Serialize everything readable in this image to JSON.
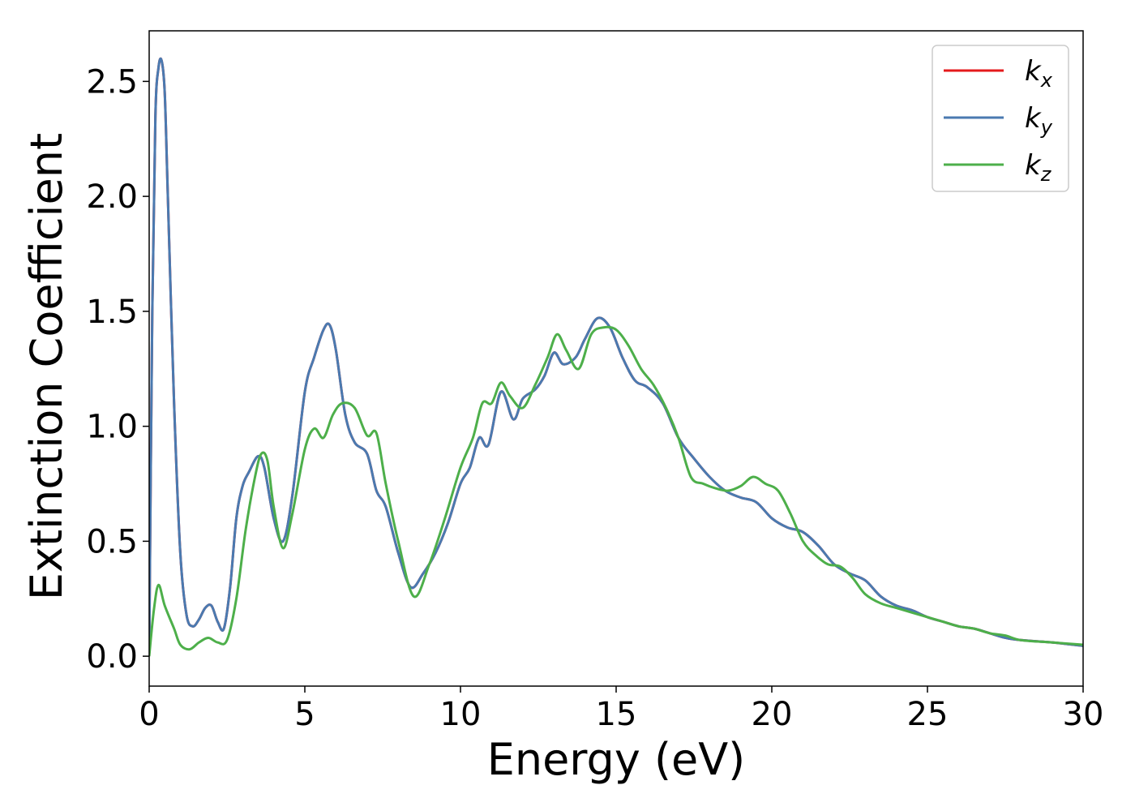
{
  "chart_data": {
    "type": "line",
    "xlabel": "Energy (eV)",
    "ylabel": "Extinction Coefficient",
    "xlim": [
      0,
      30
    ],
    "ylim": [
      -0.13,
      2.72
    ],
    "xticks": [
      0,
      5,
      10,
      15,
      20,
      25,
      30
    ],
    "xtick_labels": [
      "0",
      "5",
      "10",
      "15",
      "20",
      "25",
      "30"
    ],
    "yticks": [
      0.0,
      0.5,
      1.0,
      1.5,
      2.0,
      2.5
    ],
    "ytick_labels": [
      "0.0",
      "0.5",
      "1.0",
      "1.5",
      "2.0",
      "2.5"
    ],
    "grid": false,
    "legend_position": "top-right",
    "series": [
      {
        "name": "k_x",
        "legend_main": "k",
        "legend_sub": "x",
        "color": "#e41a1c",
        "x": [
          0,
          0.1,
          0.2,
          0.3,
          0.4,
          0.5,
          0.6,
          0.8,
          1.0,
          1.2,
          1.4,
          1.6,
          1.8,
          2.0,
          2.2,
          2.4,
          2.6,
          2.8,
          3.0,
          3.2,
          3.5,
          3.7,
          4.0,
          4.3,
          4.6,
          5.0,
          5.3,
          5.6,
          5.8,
          6.0,
          6.3,
          6.6,
          7.0,
          7.3,
          7.6,
          8.0,
          8.4,
          8.8,
          9.2,
          9.6,
          10.0,
          10.3,
          10.6,
          10.9,
          11.3,
          11.7,
          12.0,
          12.4,
          12.7,
          13.0,
          13.3,
          13.7,
          14.0,
          14.4,
          14.8,
          15.2,
          15.6,
          16.0,
          16.5,
          17.0,
          17.5,
          18.0,
          18.5,
          19.0,
          19.5,
          20.0,
          20.5,
          21.0,
          21.5,
          22.0,
          22.5,
          23.0,
          23.5,
          24.0,
          24.5,
          25.0,
          25.5,
          26.0,
          26.5,
          27.0,
          27.5,
          28.0,
          29.0,
          30.0
        ],
        "y": [
          0.0,
          1.5,
          2.35,
          2.56,
          2.59,
          2.45,
          2.0,
          1.1,
          0.45,
          0.18,
          0.13,
          0.16,
          0.21,
          0.22,
          0.15,
          0.12,
          0.3,
          0.6,
          0.74,
          0.8,
          0.87,
          0.82,
          0.6,
          0.5,
          0.7,
          1.15,
          1.3,
          1.42,
          1.44,
          1.33,
          1.05,
          0.93,
          0.88,
          0.72,
          0.65,
          0.45,
          0.3,
          0.36,
          0.45,
          0.58,
          0.75,
          0.82,
          0.95,
          0.92,
          1.15,
          1.03,
          1.12,
          1.16,
          1.22,
          1.32,
          1.27,
          1.3,
          1.38,
          1.47,
          1.43,
          1.3,
          1.2,
          1.17,
          1.1,
          0.95,
          0.86,
          0.78,
          0.72,
          0.69,
          0.67,
          0.6,
          0.56,
          0.54,
          0.48,
          0.4,
          0.36,
          0.33,
          0.26,
          0.22,
          0.2,
          0.17,
          0.15,
          0.13,
          0.12,
          0.1,
          0.08,
          0.07,
          0.06,
          0.045
        ]
      },
      {
        "name": "k_y",
        "legend_main": "k",
        "legend_sub": "y",
        "color": "#4a7ab0",
        "x": [
          0,
          0.1,
          0.2,
          0.3,
          0.4,
          0.5,
          0.6,
          0.8,
          1.0,
          1.2,
          1.4,
          1.6,
          1.8,
          2.0,
          2.2,
          2.4,
          2.6,
          2.8,
          3.0,
          3.2,
          3.5,
          3.7,
          4.0,
          4.3,
          4.6,
          5.0,
          5.3,
          5.6,
          5.8,
          6.0,
          6.3,
          6.6,
          7.0,
          7.3,
          7.6,
          8.0,
          8.4,
          8.8,
          9.2,
          9.6,
          10.0,
          10.3,
          10.6,
          10.9,
          11.3,
          11.7,
          12.0,
          12.4,
          12.7,
          13.0,
          13.3,
          13.7,
          14.0,
          14.4,
          14.8,
          15.2,
          15.6,
          16.0,
          16.5,
          17.0,
          17.5,
          18.0,
          18.5,
          19.0,
          19.5,
          20.0,
          20.5,
          21.0,
          21.5,
          22.0,
          22.5,
          23.0,
          23.5,
          24.0,
          24.5,
          25.0,
          25.5,
          26.0,
          26.5,
          27.0,
          27.5,
          28.0,
          29.0,
          30.0
        ],
        "y": [
          0.0,
          1.5,
          2.35,
          2.56,
          2.59,
          2.45,
          2.0,
          1.1,
          0.45,
          0.18,
          0.13,
          0.16,
          0.21,
          0.22,
          0.15,
          0.12,
          0.3,
          0.6,
          0.74,
          0.8,
          0.87,
          0.82,
          0.6,
          0.5,
          0.7,
          1.15,
          1.3,
          1.42,
          1.44,
          1.33,
          1.05,
          0.93,
          0.88,
          0.72,
          0.65,
          0.45,
          0.3,
          0.36,
          0.45,
          0.58,
          0.75,
          0.82,
          0.95,
          0.92,
          1.15,
          1.03,
          1.12,
          1.16,
          1.22,
          1.32,
          1.27,
          1.3,
          1.38,
          1.47,
          1.43,
          1.3,
          1.2,
          1.17,
          1.1,
          0.95,
          0.86,
          0.78,
          0.72,
          0.69,
          0.67,
          0.6,
          0.56,
          0.54,
          0.48,
          0.4,
          0.36,
          0.33,
          0.26,
          0.22,
          0.2,
          0.17,
          0.15,
          0.13,
          0.12,
          0.1,
          0.08,
          0.07,
          0.06,
          0.045
        ]
      },
      {
        "name": "k_z",
        "legend_main": "k",
        "legend_sub": "z",
        "color": "#4daf4a",
        "x": [
          0,
          0.15,
          0.3,
          0.5,
          0.8,
          1.0,
          1.3,
          1.6,
          1.9,
          2.2,
          2.5,
          2.8,
          3.1,
          3.4,
          3.6,
          3.8,
          4.0,
          4.3,
          4.6,
          5.0,
          5.3,
          5.6,
          5.9,
          6.2,
          6.6,
          7.0,
          7.3,
          7.6,
          8.0,
          8.5,
          9.0,
          9.5,
          10.0,
          10.4,
          10.7,
          11.0,
          11.3,
          11.6,
          12.0,
          12.4,
          12.8,
          13.1,
          13.4,
          13.8,
          14.2,
          14.6,
          15.0,
          15.4,
          15.8,
          16.2,
          16.6,
          17.0,
          17.4,
          17.8,
          18.2,
          18.6,
          19.0,
          19.4,
          19.8,
          20.2,
          20.6,
          21.0,
          21.4,
          21.8,
          22.2,
          22.6,
          23.0,
          23.5,
          24.0,
          24.5,
          25.0,
          25.5,
          26.0,
          26.5,
          27.0,
          27.5,
          28.0,
          29.0,
          30.0
        ],
        "y": [
          0.0,
          0.2,
          0.31,
          0.22,
          0.12,
          0.05,
          0.03,
          0.06,
          0.08,
          0.06,
          0.07,
          0.25,
          0.55,
          0.78,
          0.88,
          0.85,
          0.65,
          0.47,
          0.62,
          0.9,
          0.99,
          0.95,
          1.05,
          1.1,
          1.08,
          0.96,
          0.97,
          0.75,
          0.5,
          0.26,
          0.4,
          0.6,
          0.82,
          0.95,
          1.1,
          1.1,
          1.19,
          1.13,
          1.08,
          1.18,
          1.3,
          1.4,
          1.33,
          1.25,
          1.4,
          1.43,
          1.42,
          1.35,
          1.25,
          1.18,
          1.08,
          0.95,
          0.78,
          0.75,
          0.73,
          0.72,
          0.74,
          0.78,
          0.75,
          0.72,
          0.62,
          0.5,
          0.44,
          0.4,
          0.39,
          0.34,
          0.27,
          0.23,
          0.21,
          0.19,
          0.17,
          0.15,
          0.13,
          0.12,
          0.1,
          0.09,
          0.07,
          0.06,
          0.05
        ]
      }
    ]
  }
}
